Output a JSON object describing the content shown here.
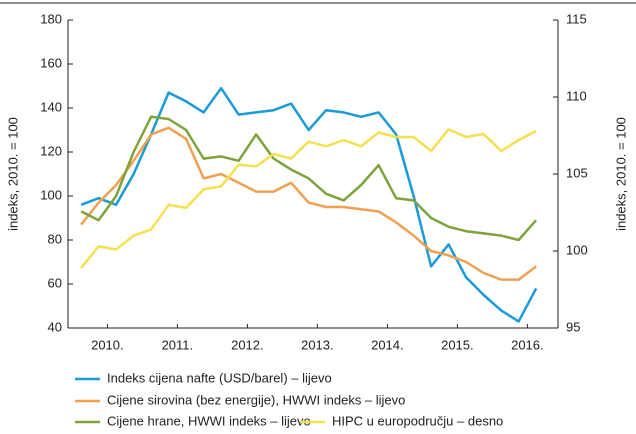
{
  "chart_data": {
    "type": "line",
    "y_label": "indeks, 2010. = 100",
    "y2_label": "indeks, 2010. = 100",
    "x": [
      0,
      1,
      2,
      3,
      4,
      5,
      6,
      7,
      8,
      9,
      10,
      11,
      12,
      13,
      14,
      15,
      16,
      17,
      18,
      19,
      20,
      21,
      22,
      23,
      24,
      25,
      26
    ],
    "xlim": [
      -0.75,
      27.25
    ],
    "xticks": [
      {
        "value": 1.5,
        "label": "2010."
      },
      {
        "value": 5.5,
        "label": "2011."
      },
      {
        "value": 9.5,
        "label": "2012."
      },
      {
        "value": 13.5,
        "label": "2013."
      },
      {
        "value": 17.5,
        "label": "2014."
      },
      {
        "value": 21.5,
        "label": "2015."
      },
      {
        "value": 25.5,
        "label": "2016."
      }
    ],
    "ylim": [
      40,
      180
    ],
    "yticks": [
      40,
      60,
      80,
      100,
      120,
      140,
      160,
      180
    ],
    "y2lim": [
      95,
      115
    ],
    "y2ticks": [
      95,
      100,
      105,
      110,
      115
    ],
    "series": [
      {
        "name": "Indeks cijena nafte (USD/barel) – lijevo",
        "color": "#1a9bd7",
        "values": [
          96,
          99,
          96,
          110,
          128,
          147,
          143,
          138,
          149,
          137,
          138,
          139,
          142,
          130,
          139,
          138,
          136,
          138,
          128,
          100,
          68,
          78,
          63,
          55,
          48,
          43,
          58
        ]
      },
      {
        "name": "Cijene sirovina (bez energije), HWWI indeks – lijevo",
        "color": "#f0a050",
        "values": [
          87,
          97,
          105,
          116,
          128,
          131,
          126,
          108,
          110,
          106,
          102,
          102,
          106,
          97,
          95,
          95,
          94,
          93,
          88,
          82,
          75,
          73,
          70,
          65,
          62,
          62,
          68
        ]
      },
      {
        "name": "Cijene hrane, HWWI indeks – lijevo",
        "color": "#7ea33b",
        "values": [
          93,
          89,
          100,
          120,
          136,
          135,
          130,
          117,
          118,
          116,
          128,
          117,
          112,
          108,
          101,
          98,
          105,
          114,
          99,
          98,
          90,
          86,
          84,
          83,
          82,
          80,
          89
        ]
      },
      {
        "name": "HIPC u europodručju – desno",
        "color": "#f5e050",
        "axis": "y2",
        "values": [
          98.9,
          100.3,
          100.1,
          101,
          101.4,
          103,
          102.8,
          104,
          104.2,
          105.6,
          105.5,
          106.3,
          106,
          107.1,
          106.8,
          107.2,
          106.8,
          107.7,
          107.4,
          107.4,
          106.5,
          107.9,
          107.4,
          107.6,
          106.5,
          107.2,
          107.8
        ]
      }
    ]
  }
}
